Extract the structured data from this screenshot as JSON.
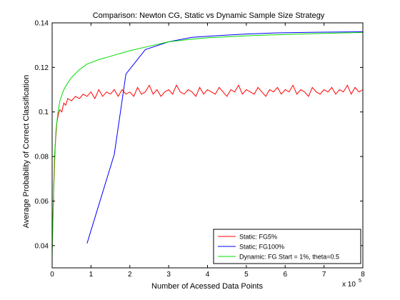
{
  "chart_data": {
    "type": "line",
    "title": "Comparison: Newton CG, Static vs Dynamic Sample Size Strategy",
    "xlabel": "Number of Acessed Data Points",
    "ylabel": "Average Probability of Correct Classification",
    "x_multiplier_label": "x 10",
    "x_multiplier_exp": "5",
    "xlim": [
      0,
      8
    ],
    "ylim": [
      0.03,
      0.14
    ],
    "x_ticks": [
      "0",
      "1",
      "2",
      "3",
      "4",
      "5",
      "6",
      "7",
      "8"
    ],
    "y_ticks": [
      "0.04",
      "0.06",
      "0.08",
      "0.1",
      "0.12",
      "0.14"
    ],
    "grid": false,
    "legend_position": "bottom-right",
    "series": [
      {
        "name": "Static: FG5%",
        "color": "#ff0000",
        "x": [
          0.0,
          0.04,
          0.08,
          0.12,
          0.16,
          0.2,
          0.25,
          0.3,
          0.35,
          0.4,
          0.5,
          0.6,
          0.7,
          0.8,
          0.9,
          1.0,
          1.1,
          1.2,
          1.3,
          1.4,
          1.5,
          1.6,
          1.7,
          1.8,
          1.9,
          2.0,
          2.1,
          2.2,
          2.3,
          2.4,
          2.5,
          2.6,
          2.7,
          2.8,
          2.9,
          3.0,
          3.1,
          3.2,
          3.3,
          3.4,
          3.5,
          3.6,
          3.7,
          3.8,
          3.9,
          4.0,
          4.1,
          4.2,
          4.3,
          4.4,
          4.5,
          4.6,
          4.7,
          4.8,
          4.9,
          5.0,
          5.1,
          5.2,
          5.3,
          5.4,
          5.5,
          5.6,
          5.7,
          5.8,
          5.9,
          6.0,
          6.1,
          6.2,
          6.3,
          6.4,
          6.5,
          6.6,
          6.7,
          6.8,
          6.9,
          7.0,
          7.1,
          7.2,
          7.3,
          7.4,
          7.5,
          7.6,
          7.7,
          7.8,
          7.9,
          8.0
        ],
        "y": [
          0.038,
          0.065,
          0.085,
          0.095,
          0.099,
          0.101,
          0.1,
          0.104,
          0.103,
          0.106,
          0.105,
          0.107,
          0.106,
          0.108,
          0.107,
          0.109,
          0.106,
          0.11,
          0.107,
          0.109,
          0.108,
          0.11,
          0.107,
          0.11,
          0.108,
          0.109,
          0.107,
          0.111,
          0.108,
          0.109,
          0.112,
          0.108,
          0.11,
          0.107,
          0.109,
          0.11,
          0.108,
          0.112,
          0.109,
          0.108,
          0.11,
          0.109,
          0.107,
          0.111,
          0.108,
          0.11,
          0.109,
          0.108,
          0.111,
          0.109,
          0.107,
          0.11,
          0.109,
          0.112,
          0.108,
          0.11,
          0.109,
          0.108,
          0.111,
          0.109,
          0.107,
          0.11,
          0.109,
          0.111,
          0.108,
          0.11,
          0.109,
          0.112,
          0.108,
          0.11,
          0.109,
          0.107,
          0.111,
          0.109,
          0.108,
          0.11,
          0.109,
          0.111,
          0.108,
          0.11,
          0.109,
          0.112,
          0.108,
          0.111,
          0.109,
          0.11
        ]
      },
      {
        "name": "Static; FG100%",
        "color": "#0000ff",
        "x": [
          0.9,
          1.6,
          1.9,
          2.4,
          3.0,
          3.6,
          4.3,
          5.0,
          5.8,
          6.8,
          8.0
        ],
        "y": [
          0.041,
          0.081,
          0.117,
          0.128,
          0.1315,
          0.1335,
          0.1343,
          0.135,
          0.1355,
          0.1358,
          0.136
        ]
      },
      {
        "name": "Dynamic: FG Start = 1%, theta=0.5",
        "color": "#00dd00",
        "x": [
          0.0,
          0.03,
          0.06,
          0.1,
          0.15,
          0.2,
          0.3,
          0.4,
          0.5,
          0.7,
          0.9,
          1.2,
          1.5,
          2.0,
          2.5,
          3.0,
          3.5,
          4.0,
          5.0,
          6.0,
          7.0,
          8.0
        ],
        "y": [
          0.035,
          0.06,
          0.08,
          0.092,
          0.1,
          0.105,
          0.11,
          0.113,
          0.1155,
          0.119,
          0.1215,
          0.1235,
          0.125,
          0.1275,
          0.1295,
          0.1315,
          0.1325,
          0.1333,
          0.1342,
          0.1348,
          0.1353,
          0.1357
        ]
      }
    ]
  }
}
